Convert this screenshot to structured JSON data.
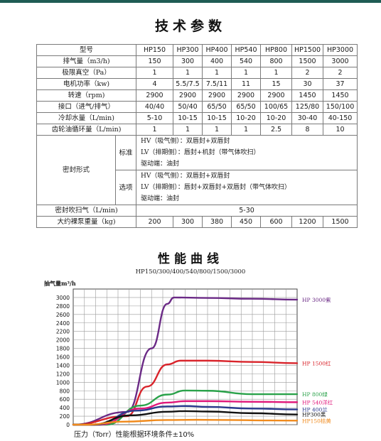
{
  "title": "技术参数",
  "table": {
    "header": {
      "label": "型号",
      "models": [
        "HP150",
        "HP300",
        "HP400",
        "HP540",
        "HP800",
        "HP1500",
        "HP3000"
      ]
    },
    "rows": [
      {
        "label": "排气量（m3/h)",
        "values": [
          "150",
          "300",
          "400",
          "540",
          "800",
          "1500",
          "3000"
        ]
      },
      {
        "label": "极限真空（Pa）",
        "values": [
          "1",
          "1",
          "1",
          "1",
          "1",
          "2",
          "2"
        ]
      },
      {
        "label": "电机功率（kw)",
        "values": [
          "4",
          "5.5/7.5",
          "7.5/11",
          "11",
          "15",
          "30",
          "37"
        ]
      },
      {
        "label": "转速（rpm)",
        "values": [
          "2900",
          "2900",
          "2900",
          "2900",
          "2900",
          "1450",
          "1450"
        ]
      },
      {
        "label": "接口（进气/排气）",
        "values": [
          "40/40",
          "50/40",
          "65/50",
          "65/50",
          "100/65",
          "125/80",
          "150/100"
        ]
      },
      {
        "label": "冷却水量（L/min)",
        "values": [
          "5-10",
          "10-15",
          "10-15",
          "10-20",
          "10-20",
          "30-40",
          "40-150"
        ]
      },
      {
        "label": "齿轮油循环量（L/min)",
        "values": [
          "1",
          "1",
          "1",
          "1",
          "2.5",
          "8",
          "10"
        ]
      }
    ],
    "seal": {
      "label": "密封形式",
      "standard": {
        "label": "标准",
        "lines": [
          "HV（吸气侧）：双唇封+双唇封",
          "LV（排期侧）：唇封+机封（带气体吹扫）",
          "驱动端：油封"
        ]
      },
      "option": {
        "label": "选项",
        "lines": [
          "HV（吸气侧）：双唇封+双唇封",
          "LV（排期侧）：唇封+双唇封+双唇封（带气体吹扫）",
          "驱动端：油封"
        ]
      }
    },
    "purge": {
      "label": "密封吹扫气（L/min)",
      "value": "5-30"
    },
    "weight": {
      "label": "大约裸泵重量（kg)",
      "values": [
        "200",
        "300",
        "380",
        "450",
        "600",
        "1200",
        "1500"
      ]
    }
  },
  "chart_title": "性能曲线",
  "chart_data": {
    "type": "line",
    "title": "HP150/300/400/540/800/1500/3000",
    "ylabel": "抽气量m³/h",
    "yticks": [
      "0",
      "200",
      "400",
      "600",
      "800",
      "1000",
      "1200",
      "1400",
      "1600",
      "1800",
      "2000",
      "2200",
      "2400",
      "2600",
      "2800",
      "3000"
    ],
    "ylim": [
      0,
      3200
    ],
    "grid": true,
    "footnote": "压力（Torr）性能根据环境条件±10%",
    "series": [
      {
        "name": "HP 3000紫",
        "color": "#6b2a86",
        "points": [
          [
            0,
            0
          ],
          [
            0.24,
            0.3
          ],
          [
            0.35,
            1.8
          ],
          [
            0.42,
            2.85
          ],
          [
            0.45,
            3000
          ],
          [
            0.6,
            2990
          ],
          [
            0.8,
            2970
          ],
          [
            1,
            2950
          ]
        ]
      },
      {
        "name": "HP 1500红",
        "color": "#d9242b",
        "points": [
          [
            0,
            0
          ],
          [
            0.24,
            0.2
          ],
          [
            0.33,
            900
          ],
          [
            0.42,
            1420
          ],
          [
            0.48,
            1510
          ],
          [
            0.6,
            1510
          ],
          [
            0.8,
            1480
          ],
          [
            1,
            1450
          ]
        ]
      },
      {
        "name": "HP 800绿",
        "color": "#2aa24a",
        "points": [
          [
            0,
            0
          ],
          [
            0.15,
            0
          ],
          [
            0.3,
            450
          ],
          [
            0.42,
            710
          ],
          [
            0.5,
            805
          ],
          [
            0.6,
            800
          ],
          [
            0.8,
            720
          ],
          [
            1,
            720
          ]
        ]
      },
      {
        "name": "HP 540洋红",
        "color": "#e0177a",
        "points": [
          [
            0,
            0
          ],
          [
            0.12,
            0
          ],
          [
            0.3,
            380
          ],
          [
            0.42,
            520
          ],
          [
            0.5,
            555
          ],
          [
            0.6,
            555
          ],
          [
            0.8,
            540
          ],
          [
            1,
            530
          ]
        ]
      },
      {
        "name": "HP 400兰",
        "color": "#2a3a8c",
        "points": [
          [
            0,
            0
          ],
          [
            0.1,
            0
          ],
          [
            0.28,
            330
          ],
          [
            0.42,
            430
          ],
          [
            0.5,
            440
          ],
          [
            0.6,
            420
          ],
          [
            0.8,
            380
          ],
          [
            1,
            360
          ]
        ]
      },
      {
        "name": "HP300黑",
        "color": "#111111",
        "points": [
          [
            0,
            0
          ],
          [
            0.08,
            0
          ],
          [
            0.26,
            220
          ],
          [
            0.42,
            305
          ],
          [
            0.5,
            320
          ],
          [
            0.6,
            310
          ],
          [
            0.8,
            270
          ],
          [
            1,
            240
          ]
        ]
      },
      {
        "name": "HP150桔黄",
        "color": "#f08a1c",
        "points": [
          [
            0,
            0
          ],
          [
            0.06,
            0
          ],
          [
            0.22,
            70
          ],
          [
            0.42,
            110
          ],
          [
            0.55,
            115
          ],
          [
            0.7,
            110
          ],
          [
            0.85,
            100
          ],
          [
            1,
            95
          ]
        ]
      }
    ]
  }
}
